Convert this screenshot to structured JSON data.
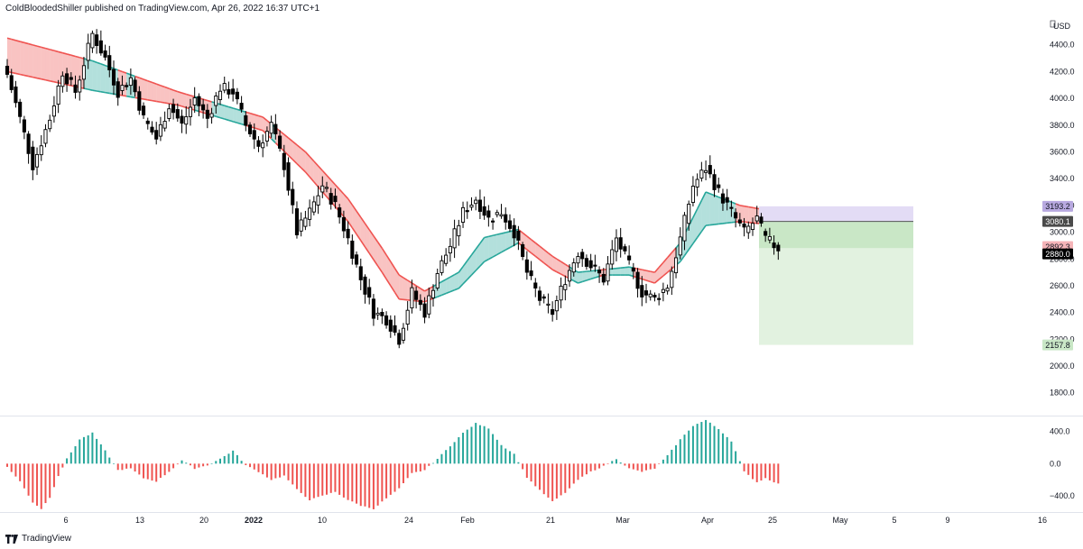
{
  "header": {
    "text": "ColdBloodedShiller published on TradingView.com, Apr 26, 2022 16:37 UTC+1"
  },
  "footer": {
    "brand": "TradingView",
    "logo_icon": "tradingview-logo-icon"
  },
  "colors": {
    "bull": "#26a69a",
    "bear": "#ef5350",
    "candle": "#000000",
    "profit_zone": "#e2f2e0",
    "profit_zone_dark": "#c9e7c6",
    "stop_zone": "#e3dcf5",
    "entry_tag": "#4a4a4a",
    "target_tag": "#c9e7c6",
    "stop_tag": "#b8a9e0",
    "current_tag": "#000000",
    "pink_tag": "#f5b4b8"
  },
  "chart_data": [
    {
      "type": "candlestick",
      "title": "",
      "currency": "USD",
      "yaxis": {
        "ticks": [
          1800,
          2000,
          2200,
          2400,
          2600,
          2800,
          3000,
          3200,
          3400,
          3600,
          3800,
          4000,
          4200,
          4400
        ],
        "tick_labels": [
          "1800.0",
          "2000.0",
          "2200.0",
          "2400.0",
          "2600.0",
          "2800.0",
          "3000.0",
          "3200.0",
          "3400.0",
          "3600.0",
          "3800.0",
          "4000.0",
          "4200.0",
          "4400.0"
        ],
        "range": [
          1650,
          4600
        ]
      },
      "xaxis": {
        "labels": [
          "6",
          "13",
          "20",
          "2022",
          "10",
          "24",
          "Feb",
          "21",
          "Mar",
          "Apr",
          "25",
          "May",
          "5",
          "9",
          "16"
        ]
      },
      "close_anchors": [
        [
          0,
          4180
        ],
        [
          3,
          3850
        ],
        [
          6,
          3500
        ],
        [
          10,
          3850
        ],
        [
          13,
          4200
        ],
        [
          16,
          4050
        ],
        [
          20,
          4480
        ],
        [
          23,
          4300
        ],
        [
          26,
          4050
        ],
        [
          29,
          4150
        ],
        [
          32,
          3850
        ],
        [
          35,
          3700
        ],
        [
          38,
          3950
        ],
        [
          41,
          3800
        ],
        [
          44,
          4000
        ],
        [
          47,
          3850
        ],
        [
          50,
          4080
        ],
        [
          53,
          4050
        ],
        [
          56,
          3800
        ],
        [
          59,
          3650
        ],
        [
          62,
          3800
        ],
        [
          65,
          3500
        ],
        [
          68,
          3000
        ],
        [
          71,
          3150
        ],
        [
          74,
          3350
        ],
        [
          77,
          3200
        ],
        [
          80,
          2950
        ],
        [
          83,
          2650
        ],
        [
          86,
          2400
        ],
        [
          89,
          2350
        ],
        [
          92,
          2200
        ],
        [
          95,
          2550
        ],
        [
          98,
          2400
        ],
        [
          101,
          2700
        ],
        [
          104,
          2900
        ],
        [
          107,
          3150
        ],
        [
          110,
          3250
        ],
        [
          113,
          3100
        ],
        [
          116,
          3150
        ],
        [
          119,
          3000
        ],
        [
          122,
          2700
        ],
        [
          125,
          2500
        ],
        [
          128,
          2400
        ],
        [
          131,
          2650
        ],
        [
          134,
          2850
        ],
        [
          137,
          2750
        ],
        [
          140,
          2650
        ],
        [
          143,
          2950
        ],
        [
          146,
          2750
        ],
        [
          149,
          2550
        ],
        [
          152,
          2500
        ],
        [
          155,
          2600
        ],
        [
          158,
          2950
        ],
        [
          161,
          3350
        ],
        [
          164,
          3480
        ],
        [
          167,
          3300
        ],
        [
          170,
          3150
        ],
        [
          173,
          3000
        ],
        [
          176,
          3100
        ],
        [
          178,
          2950
        ],
        [
          181,
          2880
        ]
      ],
      "emas": [
        {
          "name": "",
          "anchors": [
            [
              0,
              4450
            ],
            [
              20,
              4280
            ],
            [
              40,
              4050
            ],
            [
              60,
              3860
            ],
            [
              70,
              3600
            ],
            [
              80,
              3250
            ],
            [
              88,
              2880
            ],
            [
              92,
              2680
            ],
            [
              98,
              2560
            ],
            [
              106,
              2700
            ],
            [
              112,
              2960
            ],
            [
              120,
              3020
            ],
            [
              128,
              2820
            ],
            [
              134,
              2700
            ],
            [
              140,
              2720
            ],
            [
              146,
              2740
            ],
            [
              152,
              2700
            ],
            [
              158,
              2920
            ],
            [
              164,
              3300
            ],
            [
              172,
              3200
            ],
            [
              181,
              3150
            ]
          ]
        },
        {
          "name": "",
          "anchors": [
            [
              0,
              4200
            ],
            [
              20,
              4060
            ],
            [
              40,
              3950
            ],
            [
              60,
              3760
            ],
            [
              70,
              3450
            ],
            [
              80,
              3080
            ],
            [
              88,
              2700
            ],
            [
              92,
              2500
            ],
            [
              98,
              2480
            ],
            [
              106,
              2580
            ],
            [
              112,
              2780
            ],
            [
              120,
              2920
            ],
            [
              128,
              2720
            ],
            [
              134,
              2620
            ],
            [
              140,
              2680
            ],
            [
              146,
              2680
            ],
            [
              152,
              2620
            ],
            [
              158,
              2780
            ],
            [
              164,
              3050
            ],
            [
              172,
              3080
            ],
            [
              181,
              3050
            ]
          ]
        }
      ],
      "trade": {
        "entry_label": "3080.1",
        "stop_label": "3193.2",
        "target_label": "2157.8",
        "current_label": "2880.0",
        "pink_label": "2892.3",
        "entry": 3080.1,
        "stop": 3193.2,
        "target": 2157.8,
        "current": 2880.0,
        "pink": 2892.3
      }
    },
    {
      "type": "histogram",
      "title": "",
      "yaxis": {
        "ticks": [
          -400,
          0,
          400
        ],
        "tick_labels": [
          "−400.0",
          "0.0",
          "400.0"
        ],
        "range": [
          -600,
          540
        ]
      },
      "anchors": [
        [
          0,
          -40
        ],
        [
          3,
          -220
        ],
        [
          6,
          -480
        ],
        [
          8,
          -560
        ],
        [
          10,
          -420
        ],
        [
          12,
          -150
        ],
        [
          14,
          60
        ],
        [
          17,
          300
        ],
        [
          20,
          380
        ],
        [
          23,
          160
        ],
        [
          26,
          -80
        ],
        [
          29,
          -60
        ],
        [
          32,
          -180
        ],
        [
          35,
          -220
        ],
        [
          38,
          -100
        ],
        [
          41,
          40
        ],
        [
          44,
          -60
        ],
        [
          47,
          -20
        ],
        [
          50,
          60
        ],
        [
          53,
          160
        ],
        [
          56,
          -20
        ],
        [
          59,
          -100
        ],
        [
          62,
          -200
        ],
        [
          65,
          -150
        ],
        [
          68,
          -320
        ],
        [
          71,
          -450
        ],
        [
          74,
          -400
        ],
        [
          77,
          -350
        ],
        [
          80,
          -450
        ],
        [
          83,
          -520
        ],
        [
          86,
          -560
        ],
        [
          89,
          -430
        ],
        [
          92,
          -310
        ],
        [
          95,
          -120
        ],
        [
          98,
          -80
        ],
        [
          101,
          60
        ],
        [
          104,
          220
        ],
        [
          107,
          380
        ],
        [
          110,
          500
        ],
        [
          113,
          440
        ],
        [
          116,
          230
        ],
        [
          119,
          120
        ],
        [
          122,
          -170
        ],
        [
          125,
          -330
        ],
        [
          128,
          -470
        ],
        [
          131,
          -360
        ],
        [
          134,
          -200
        ],
        [
          137,
          -100
        ],
        [
          140,
          -30
        ],
        [
          143,
          60
        ],
        [
          146,
          -60
        ],
        [
          149,
          -100
        ],
        [
          152,
          -60
        ],
        [
          155,
          100
        ],
        [
          158,
          300
        ],
        [
          161,
          470
        ],
        [
          164,
          540
        ],
        [
          167,
          430
        ],
        [
          170,
          280
        ],
        [
          173,
          -100
        ],
        [
          176,
          -230
        ],
        [
          178,
          -180
        ],
        [
          181,
          -250
        ]
      ]
    }
  ]
}
